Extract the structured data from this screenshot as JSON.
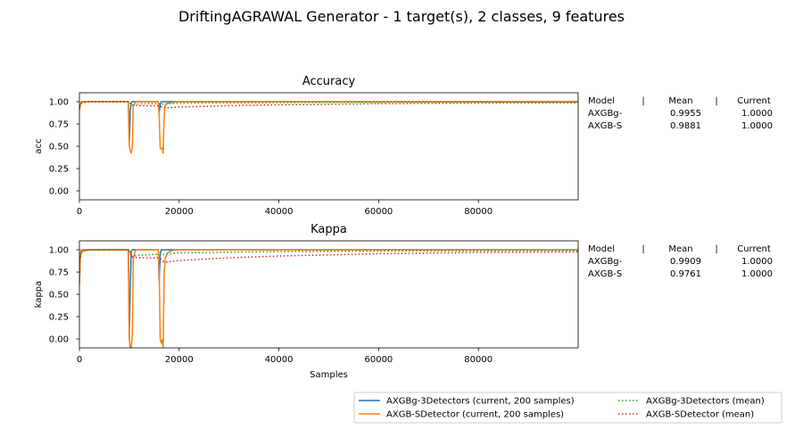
{
  "figure_title": "DriftingAGRAWAL Generator - 1 target(s), 2 classes, 9 features",
  "colors": {
    "axgbg_current": "#1f77b4",
    "axgbs_current": "#ff7f0e",
    "axgbg_mean": "#2ca02c",
    "axgbs_mean": "#d62728"
  },
  "legend": [
    {
      "label": "AXGBg-3Detectors  (current, 200 samples)",
      "color": "#1f77b4",
      "style": "solid"
    },
    {
      "label": "AXGB-SDetector  (current, 200 samples)",
      "color": "#ff7f0e",
      "style": "solid"
    },
    {
      "label": "AXGBg-3Detectors (mean)",
      "color": "#2ca02c",
      "style": "dotted"
    },
    {
      "label": "AXGB-SDetector (mean)",
      "color": "#d62728",
      "style": "dotted"
    }
  ],
  "chart_data": [
    {
      "type": "line",
      "title": "Accuracy",
      "xlabel": "",
      "ylabel": "acc",
      "xlim": [
        0,
        100000
      ],
      "ylim": [
        -0.1,
        1.1
      ],
      "xticks": [
        0,
        20000,
        40000,
        60000,
        80000
      ],
      "yticks": [
        "0.00",
        "0.25",
        "0.50",
        "0.75",
        "1.00"
      ],
      "table": {
        "header": [
          "Model",
          "|",
          "Mean",
          "|",
          "Current"
        ],
        "rows": [
          [
            "AXGBg-",
            "0.9955",
            "1.0000"
          ],
          [
            "AXGB-S",
            "0.9881",
            "1.0000"
          ]
        ]
      },
      "series": [
        {
          "key": "axgbg_current",
          "style": "solid",
          "x": [
            0,
            200,
            400,
            1000,
            5000,
            9800,
            10000,
            10200,
            10400,
            10600,
            10800,
            11200,
            12000,
            15800,
            16000,
            16200,
            16400,
            16800,
            17200,
            18000,
            100000
          ],
          "y": [
            0.92,
            0.97,
            1.0,
            1.0,
            1.0,
            1.0,
            0.52,
            0.9,
            0.99,
            1.0,
            1.0,
            1.0,
            1.0,
            1.0,
            0.88,
            0.97,
            1.0,
            1.0,
            1.0,
            1.0,
            1.0
          ]
        },
        {
          "key": "axgbs_current",
          "style": "solid",
          "x": [
            0,
            200,
            400,
            1000,
            5000,
            9800,
            10000,
            10200,
            10400,
            10600,
            10800,
            11200,
            11600,
            15800,
            16000,
            16200,
            16400,
            16600,
            16800,
            17000,
            17200,
            17600,
            18400,
            20000,
            100000
          ],
          "y": [
            0.9,
            0.97,
            1.0,
            1.0,
            1.0,
            1.0,
            0.5,
            0.45,
            0.42,
            0.5,
            0.95,
            0.99,
            1.0,
            1.0,
            0.85,
            0.48,
            0.47,
            0.48,
            0.42,
            0.85,
            0.96,
            0.98,
            0.99,
            1.0,
            1.0
          ]
        },
        {
          "key": "axgbg_mean",
          "style": "dotted",
          "x": [
            0,
            500,
            2000,
            9900,
            10500,
            12000,
            15900,
            16500,
            20000,
            40000,
            60000,
            80000,
            100000
          ],
          "y": [
            0.95,
            0.99,
            1.0,
            1.0,
            0.97,
            0.975,
            0.98,
            0.975,
            0.985,
            0.99,
            0.993,
            0.995,
            0.9955
          ]
        },
        {
          "key": "axgbs_mean",
          "style": "dotted",
          "x": [
            0,
            500,
            2000,
            9900,
            10500,
            12000,
            15900,
            17000,
            20000,
            30000,
            40000,
            60000,
            80000,
            100000
          ],
          "y": [
            0.94,
            0.99,
            1.0,
            1.0,
            0.96,
            0.955,
            0.955,
            0.93,
            0.94,
            0.955,
            0.965,
            0.978,
            0.985,
            0.9881
          ]
        }
      ]
    },
    {
      "type": "line",
      "title": "Kappa",
      "xlabel": "Samples",
      "ylabel": "kappa",
      "xlim": [
        0,
        100000
      ],
      "ylim": [
        -0.1,
        1.1
      ],
      "xticks": [
        0,
        20000,
        40000,
        60000,
        80000
      ],
      "yticks": [
        "0.00",
        "0.25",
        "0.50",
        "0.75",
        "1.00"
      ],
      "table": {
        "header": [
          "Model",
          "|",
          "Mean",
          "|",
          "Current"
        ],
        "rows": [
          [
            "AXGBg-",
            "0.9909",
            "1.0000"
          ],
          [
            "AXGB-S",
            "0.9761",
            "1.0000"
          ]
        ]
      },
      "series": [
        {
          "key": "axgbg_current",
          "style": "solid",
          "x": [
            0,
            200,
            400,
            1000,
            5000,
            9800,
            10000,
            10200,
            10400,
            10600,
            10800,
            11200,
            12000,
            15800,
            16000,
            16200,
            16400,
            16800,
            17200,
            18000,
            100000
          ],
          "y": [
            0.62,
            0.95,
            1.0,
            1.0,
            1.0,
            1.0,
            0.0,
            0.6,
            0.98,
            1.0,
            1.0,
            1.0,
            1.0,
            1.0,
            0.65,
            0.95,
            1.0,
            1.0,
            1.0,
            1.0,
            1.0
          ]
        },
        {
          "key": "axgbs_current",
          "style": "solid",
          "x": [
            0,
            200,
            400,
            1000,
            5000,
            9800,
            10000,
            10200,
            10400,
            10600,
            10800,
            11200,
            11600,
            15800,
            16000,
            16200,
            16400,
            16600,
            16800,
            17000,
            17200,
            17600,
            18400,
            20000,
            100000
          ],
          "y": [
            0.6,
            0.95,
            1.0,
            1.0,
            1.0,
            1.0,
            0.0,
            -0.1,
            -0.1,
            0.05,
            0.9,
            0.99,
            1.0,
            1.0,
            0.8,
            0.0,
            -0.05,
            0.0,
            -0.1,
            0.75,
            0.9,
            0.96,
            0.99,
            1.0,
            1.0
          ]
        },
        {
          "key": "axgbg_mean",
          "style": "dotted",
          "x": [
            0,
            500,
            2000,
            9900,
            10500,
            12000,
            15900,
            16500,
            20000,
            40000,
            60000,
            80000,
            100000
          ],
          "y": [
            0.9,
            0.98,
            1.0,
            1.0,
            0.93,
            0.94,
            0.95,
            0.945,
            0.965,
            0.98,
            0.986,
            0.989,
            0.9909
          ]
        },
        {
          "key": "axgbs_mean",
          "style": "dotted",
          "x": [
            0,
            500,
            2000,
            9900,
            10500,
            12000,
            15900,
            17000,
            20000,
            30000,
            40000,
            60000,
            80000,
            100000
          ],
          "y": [
            0.88,
            0.98,
            1.0,
            1.0,
            0.92,
            0.91,
            0.91,
            0.86,
            0.88,
            0.91,
            0.93,
            0.955,
            0.97,
            0.9761
          ]
        }
      ]
    }
  ]
}
